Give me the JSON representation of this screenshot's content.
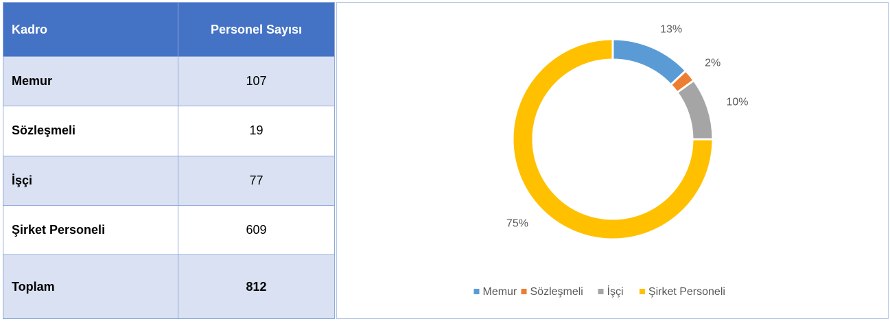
{
  "table": {
    "header": [
      "Kadro",
      "Personel Sayısı"
    ],
    "rows": [
      [
        "Memur",
        "107"
      ],
      [
        "Sözleşmeli",
        "19"
      ],
      [
        "İşçi",
        "77"
      ],
      [
        "Şirket Personeli",
        "609"
      ],
      [
        "Toplam",
        "812"
      ]
    ]
  },
  "chart_data": {
    "type": "donut",
    "categories": [
      "Memur",
      "Sözleşmeli",
      "İşçi",
      "Şirket Personeli"
    ],
    "values": [
      13,
      2,
      10,
      75
    ],
    "value_labels": [
      "13%",
      "2%",
      "10%",
      "75%"
    ],
    "colors": [
      "#5b9bd5",
      "#ed7d31",
      "#a5a5a5",
      "#ffc000"
    ],
    "legend": "bottom"
  }
}
